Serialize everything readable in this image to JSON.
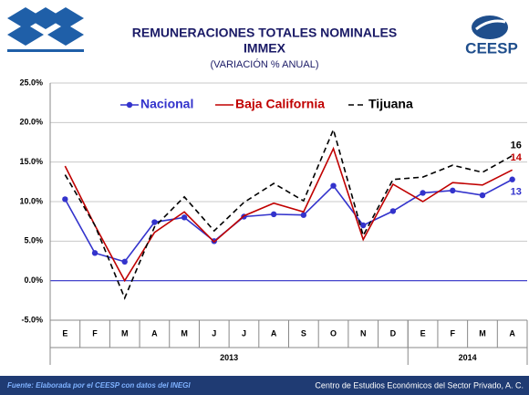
{
  "chart_data": {
    "type": "line",
    "title": "REMUNERACIONES TOTALES NOMINALES",
    "title2": "IMMEX",
    "subtitle": "(VARIACIÓN % ANUAL)",
    "categories": [
      "E",
      "F",
      "M",
      "A",
      "M",
      "J",
      "J",
      "A",
      "S",
      "O",
      "N",
      "D",
      "E",
      "F",
      "M",
      "A"
    ],
    "groups": [
      {
        "name": "2013",
        "span": 12
      },
      {
        "name": "2014",
        "span": 4
      }
    ],
    "series": [
      {
        "name": "Nacional",
        "color": "#3333cc",
        "line_style": "solid",
        "marker": "circle",
        "values": [
          10.3,
          3.5,
          2.4,
          7.4,
          8.0,
          5.0,
          8.1,
          8.4,
          8.3,
          12.0,
          7.0,
          8.8,
          11.1,
          11.4,
          10.8,
          12.8
        ],
        "value_labels": [
          null,
          null,
          null,
          null,
          null,
          null,
          null,
          null,
          null,
          null,
          null,
          null,
          null,
          null,
          null,
          "13"
        ]
      },
      {
        "name": "Baja California",
        "color": "#c00000",
        "line_style": "solid",
        "marker": "none",
        "values": [
          14.5,
          7.0,
          0.0,
          6.1,
          8.7,
          4.9,
          8.2,
          9.8,
          8.7,
          16.7,
          5.2,
          12.2,
          10.0,
          12.4,
          12.1,
          14.0
        ],
        "value_labels": [
          null,
          null,
          null,
          null,
          null,
          null,
          null,
          null,
          null,
          null,
          null,
          null,
          null,
          null,
          null,
          "14"
        ]
      },
      {
        "name": "Tijuana",
        "color": "#000000",
        "line_style": "dashed",
        "marker": "none",
        "values": [
          13.4,
          7.0,
          -2.2,
          6.8,
          10.6,
          6.3,
          9.9,
          12.3,
          10.1,
          19.1,
          5.7,
          12.8,
          13.1,
          14.6,
          13.7,
          15.8
        ],
        "value_labels": [
          null,
          null,
          null,
          null,
          null,
          null,
          null,
          null,
          null,
          null,
          null,
          null,
          null,
          null,
          null,
          "16"
        ]
      }
    ],
    "ylim": [
      -5,
      25
    ],
    "yticks": [
      {
        "value": -5,
        "label": "-5.0%"
      },
      {
        "value": 0,
        "label": "0.0%"
      },
      {
        "value": 5,
        "label": "5.0%"
      },
      {
        "value": 10,
        "label": "10.0%"
      },
      {
        "value": 15,
        "label": "15.0%"
      },
      {
        "value": 20,
        "label": "20.0%"
      },
      {
        "value": 25,
        "label": "25.0%"
      }
    ],
    "grid": true,
    "legend": "top"
  },
  "logo_text": "CEESP",
  "footer": {
    "source": "Fuente: Elaborada por el CEESP con datos del INEGI",
    "org": "Centro de Estudios Económicos del Sector Privado, A. C."
  }
}
